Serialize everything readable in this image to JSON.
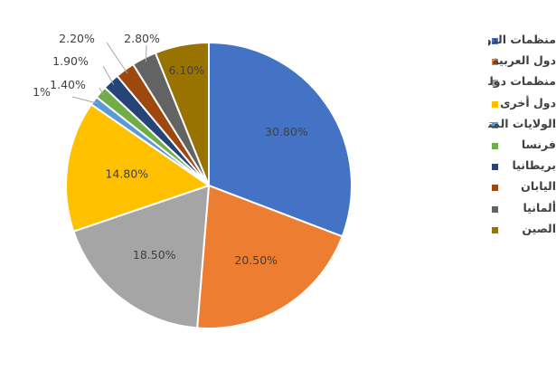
{
  "chart_data": {
    "type": "pie",
    "title": "",
    "slices": [
      {
        "name": "منظمات الدولية",
        "value": 30.8,
        "label": "30.80%",
        "color": "#4472C4"
      },
      {
        "name": "دول العربية",
        "value": 20.5,
        "label": "20.50%",
        "color": "#ED7D31"
      },
      {
        "name": "منظمات دولية",
        "value": 18.5,
        "label": "18.50%",
        "color": "#A5A5A5"
      },
      {
        "name": "دول أخرى",
        "value": 14.8,
        "label": "14.80%",
        "color": "#FFC000"
      },
      {
        "name": "الولايات المتحدة",
        "value": 1.0,
        "label": "1%",
        "color": "#5B9BD5"
      },
      {
        "name": "فرنسا",
        "value": 1.4,
        "label": "1.40%",
        "color": "#70AD47"
      },
      {
        "name": "بريطانيا",
        "value": 1.9,
        "label": "1.90%",
        "color": "#264478"
      },
      {
        "name": "اليابان",
        "value": 2.2,
        "label": "2.20%",
        "color": "#9E480E"
      },
      {
        "name": "ألمانيا",
        "value": 2.8,
        "label": "2.80%",
        "color": "#636363"
      },
      {
        "name": "الصين",
        "value": 6.1,
        "label": "6.10%",
        "color": "#997300"
      }
    ],
    "legend_position": "right"
  }
}
